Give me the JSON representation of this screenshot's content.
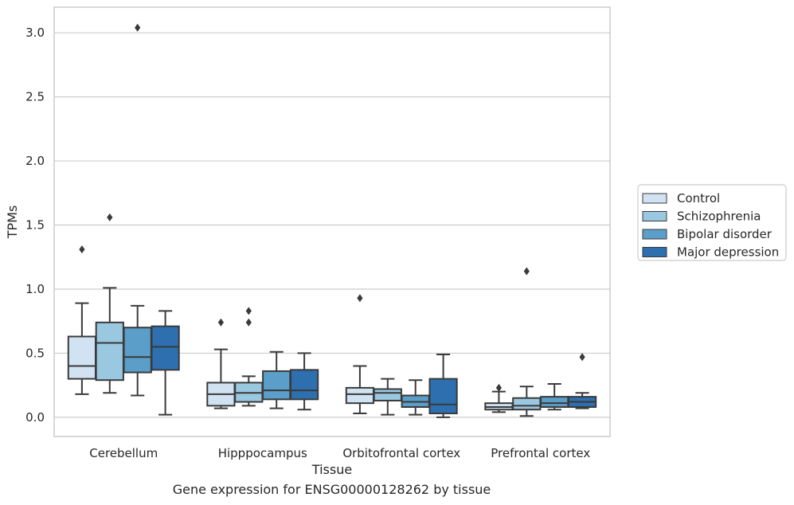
{
  "chart_data": {
    "type": "box",
    "xlabel": "Tissue",
    "ylabel": "TPMs",
    "ylim": [
      -0.15,
      3.2
    ],
    "yticks": [
      0.0,
      0.5,
      1.0,
      1.5,
      2.0,
      2.5,
      3.0
    ],
    "ytick_labels": [
      "0.0",
      "0.5",
      "1.0",
      "1.5",
      "2.0",
      "2.5",
      "3.0"
    ],
    "categories": [
      "Cerebellum",
      "Hipppocampus",
      "Orbitofrontal cortex",
      "Prefrontal cortex"
    ],
    "grid": "horizontal",
    "legend_position": "right",
    "series": [
      {
        "name": "Control",
        "color": "#d1e2f2",
        "boxes": [
          {
            "whisker_low": 0.18,
            "q1": 0.3,
            "median": 0.4,
            "q3": 0.63,
            "whisker_high": 0.89,
            "outliers": [
              1.31
            ]
          },
          {
            "whisker_low": 0.07,
            "q1": 0.09,
            "median": 0.18,
            "q3": 0.27,
            "whisker_high": 0.53,
            "outliers": [
              0.74
            ]
          },
          {
            "whisker_low": 0.03,
            "q1": 0.11,
            "median": 0.18,
            "q3": 0.23,
            "whisker_high": 0.4,
            "outliers": [
              0.93
            ]
          },
          {
            "whisker_low": 0.04,
            "q1": 0.06,
            "median": 0.08,
            "q3": 0.11,
            "whisker_high": 0.2,
            "outliers": [
              0.23
            ]
          }
        ]
      },
      {
        "name": "Schizophrenia",
        "color": "#9ac8e0",
        "boxes": [
          {
            "whisker_low": 0.19,
            "q1": 0.29,
            "median": 0.58,
            "q3": 0.74,
            "whisker_high": 1.01,
            "outliers": [
              1.56
            ]
          },
          {
            "whisker_low": 0.09,
            "q1": 0.12,
            "median": 0.19,
            "q3": 0.27,
            "whisker_high": 0.32,
            "outliers": [
              0.83,
              0.74
            ]
          },
          {
            "whisker_low": 0.02,
            "q1": 0.13,
            "median": 0.19,
            "q3": 0.22,
            "whisker_high": 0.3,
            "outliers": []
          },
          {
            "whisker_low": 0.01,
            "q1": 0.06,
            "median": 0.09,
            "q3": 0.15,
            "whisker_high": 0.24,
            "outliers": [
              1.14
            ]
          }
        ]
      },
      {
        "name": "Bipolar disorder",
        "color": "#5a9ec9",
        "boxes": [
          {
            "whisker_low": 0.17,
            "q1": 0.35,
            "median": 0.47,
            "q3": 0.7,
            "whisker_high": 0.87,
            "outliers": [
              3.04
            ]
          },
          {
            "whisker_low": 0.07,
            "q1": 0.14,
            "median": 0.21,
            "q3": 0.36,
            "whisker_high": 0.51,
            "outliers": []
          },
          {
            "whisker_low": 0.02,
            "q1": 0.08,
            "median": 0.12,
            "q3": 0.17,
            "whisker_high": 0.29,
            "outliers": []
          },
          {
            "whisker_low": 0.06,
            "q1": 0.08,
            "median": 0.11,
            "q3": 0.16,
            "whisker_high": 0.26,
            "outliers": []
          }
        ]
      },
      {
        "name": "Major depression",
        "color": "#2e6fb0",
        "boxes": [
          {
            "whisker_low": 0.02,
            "q1": 0.37,
            "median": 0.55,
            "q3": 0.71,
            "whisker_high": 0.83,
            "outliers": []
          },
          {
            "whisker_low": 0.06,
            "q1": 0.14,
            "median": 0.21,
            "q3": 0.37,
            "whisker_high": 0.5,
            "outliers": []
          },
          {
            "whisker_low": 0.0,
            "q1": 0.03,
            "median": 0.1,
            "q3": 0.3,
            "whisker_high": 0.49,
            "outliers": []
          },
          {
            "whisker_low": 0.07,
            "q1": 0.08,
            "median": 0.12,
            "q3": 0.16,
            "whisker_high": 0.19,
            "outliers": [
              0.47
            ]
          }
        ]
      }
    ]
  },
  "caption": "Gene expression for ENSG00000128262 by tissue",
  "style": {
    "grid_color": "#cccccc",
    "frame_color": "#cccccc",
    "line_color": "#3a3a3a",
    "text_color": "#262626",
    "background": "#ffffff"
  }
}
